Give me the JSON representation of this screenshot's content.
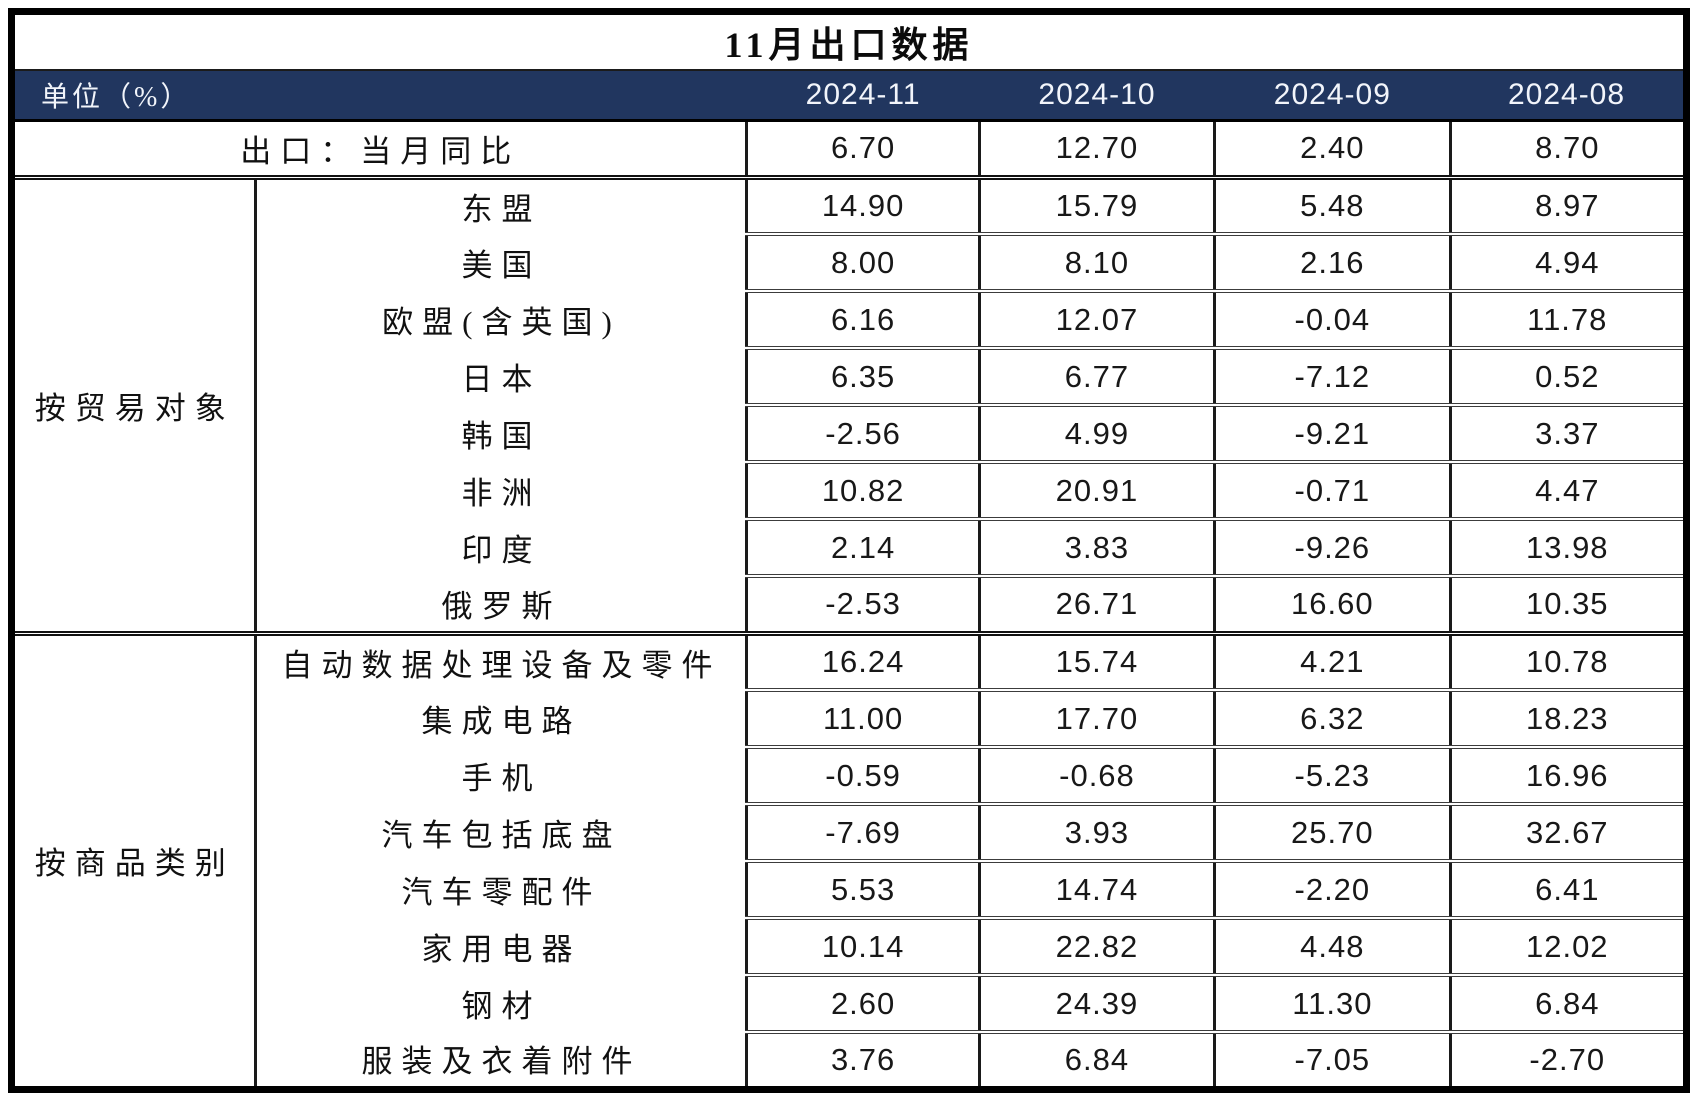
{
  "title": "11月出口数据",
  "header": {
    "unit_label": "单位（%）",
    "columns": [
      "2024-11",
      "2024-10",
      "2024-09",
      "2024-08"
    ]
  },
  "summary": {
    "label": "出口：当月同比",
    "values": [
      "6.70",
      "12.70",
      "2.40",
      "8.70"
    ]
  },
  "sections": [
    {
      "label": "按贸易对象",
      "rows": [
        {
          "label": "东盟",
          "values": [
            "14.90",
            "15.79",
            "5.48",
            "8.97"
          ]
        },
        {
          "label": "美国",
          "values": [
            "8.00",
            "8.10",
            "2.16",
            "4.94"
          ]
        },
        {
          "label": "欧盟(含英国)",
          "values": [
            "6.16",
            "12.07",
            "-0.04",
            "11.78"
          ]
        },
        {
          "label": "日本",
          "values": [
            "6.35",
            "6.77",
            "-7.12",
            "0.52"
          ]
        },
        {
          "label": "韩国",
          "values": [
            "-2.56",
            "4.99",
            "-9.21",
            "3.37"
          ]
        },
        {
          "label": "非洲",
          "values": [
            "10.82",
            "20.91",
            "-0.71",
            "4.47"
          ]
        },
        {
          "label": "印度",
          "values": [
            "2.14",
            "3.83",
            "-9.26",
            "13.98"
          ]
        },
        {
          "label": "俄罗斯",
          "values": [
            "-2.53",
            "26.71",
            "16.60",
            "10.35"
          ]
        }
      ]
    },
    {
      "label": "按商品类别",
      "rows": [
        {
          "label": "自动数据处理设备及零件",
          "values": [
            "16.24",
            "15.74",
            "4.21",
            "10.78"
          ]
        },
        {
          "label": "集成电路",
          "values": [
            "11.00",
            "17.70",
            "6.32",
            "18.23"
          ]
        },
        {
          "label": "手机",
          "values": [
            "-0.59",
            "-0.68",
            "-5.23",
            "16.96"
          ]
        },
        {
          "label": "汽车包括底盘",
          "values": [
            "-7.69",
            "3.93",
            "25.70",
            "32.67"
          ]
        },
        {
          "label": "汽车零配件",
          "values": [
            "5.53",
            "14.74",
            "-2.20",
            "6.41"
          ]
        },
        {
          "label": "家用电器",
          "values": [
            "10.14",
            "22.82",
            "4.48",
            "12.02"
          ]
        },
        {
          "label": "钢材",
          "values": [
            "2.60",
            "24.39",
            "11.30",
            "6.84"
          ]
        },
        {
          "label": "服装及衣着附件",
          "values": [
            "3.76",
            "6.84",
            "-7.05",
            "-2.70"
          ]
        }
      ]
    }
  ],
  "colors": {
    "header_bg": "#21365f",
    "header_text": "#ffffff",
    "border_dark": "#000000",
    "row_line": "#3c3c3c"
  },
  "chart_data": {
    "type": "table",
    "title": "11月出口数据",
    "unit": "单位（%）",
    "columns": [
      "2024-11",
      "2024-10",
      "2024-09",
      "2024-08"
    ],
    "rows": [
      {
        "group": "",
        "label": "出口：当月同比",
        "values": [
          6.7,
          12.7,
          2.4,
          8.7
        ]
      },
      {
        "group": "按贸易对象",
        "label": "东盟",
        "values": [
          14.9,
          15.79,
          5.48,
          8.97
        ]
      },
      {
        "group": "按贸易对象",
        "label": "美国",
        "values": [
          8.0,
          8.1,
          2.16,
          4.94
        ]
      },
      {
        "group": "按贸易对象",
        "label": "欧盟(含英国)",
        "values": [
          6.16,
          12.07,
          -0.04,
          11.78
        ]
      },
      {
        "group": "按贸易对象",
        "label": "日本",
        "values": [
          6.35,
          6.77,
          -7.12,
          0.52
        ]
      },
      {
        "group": "按贸易对象",
        "label": "韩国",
        "values": [
          -2.56,
          4.99,
          -9.21,
          3.37
        ]
      },
      {
        "group": "按贸易对象",
        "label": "非洲",
        "values": [
          10.82,
          20.91,
          -0.71,
          4.47
        ]
      },
      {
        "group": "按贸易对象",
        "label": "印度",
        "values": [
          2.14,
          3.83,
          -9.26,
          13.98
        ]
      },
      {
        "group": "按贸易对象",
        "label": "俄罗斯",
        "values": [
          -2.53,
          26.71,
          16.6,
          10.35
        ]
      },
      {
        "group": "按商品类别",
        "label": "自动数据处理设备及零件",
        "values": [
          16.24,
          15.74,
          4.21,
          10.78
        ]
      },
      {
        "group": "按商品类别",
        "label": "集成电路",
        "values": [
          11.0,
          17.7,
          6.32,
          18.23
        ]
      },
      {
        "group": "按商品类别",
        "label": "手机",
        "values": [
          -0.59,
          -0.68,
          -5.23,
          16.96
        ]
      },
      {
        "group": "按商品类别",
        "label": "汽车包括底盘",
        "values": [
          -7.69,
          3.93,
          25.7,
          32.67
        ]
      },
      {
        "group": "按商品类别",
        "label": "汽车零配件",
        "values": [
          5.53,
          14.74,
          -2.2,
          6.41
        ]
      },
      {
        "group": "按商品类别",
        "label": "家用电器",
        "values": [
          10.14,
          22.82,
          4.48,
          12.02
        ]
      },
      {
        "group": "按商品类别",
        "label": "钢材",
        "values": [
          2.6,
          24.39,
          11.3,
          6.84
        ]
      },
      {
        "group": "按商品类别",
        "label": "服装及衣着附件",
        "values": [
          3.76,
          6.84,
          -7.05,
          -2.7
        ]
      }
    ]
  }
}
